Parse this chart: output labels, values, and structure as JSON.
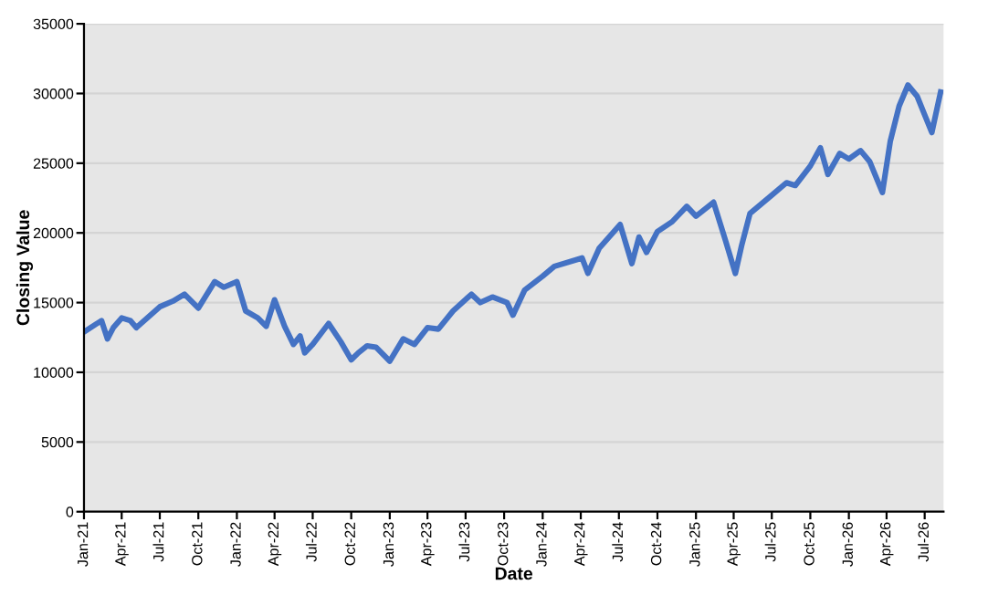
{
  "chart_data": {
    "type": "line",
    "xlabel": "Date",
    "ylabel": "Closing Value",
    "x": [
      "2021-01-01",
      "2021-02-01",
      "2021-02-12",
      "2021-02-26",
      "2021-03-12",
      "2021-04-01",
      "2021-04-22",
      "2021-05-06",
      "2021-07-01",
      "2021-08-01",
      "2021-08-29",
      "2021-10-01",
      "2021-11-09",
      "2021-12-01",
      "2022-01-01",
      "2022-01-22",
      "2022-02-20",
      "2022-03-12",
      "2022-04-01",
      "2022-04-25",
      "2022-05-16",
      "2022-06-01",
      "2022-06-12",
      "2022-07-01",
      "2022-08-08",
      "2022-09-06",
      "2022-10-01",
      "2022-10-18",
      "2022-11-08",
      "2022-11-29",
      "2023-01-01",
      "2023-02-02",
      "2023-03-01",
      "2023-04-01",
      "2023-04-27",
      "2023-06-01",
      "2023-07-15",
      "2023-08-05",
      "2023-09-03",
      "2023-10-08",
      "2023-10-22",
      "2023-11-19",
      "2024-01-01",
      "2024-01-29",
      "2024-04-04",
      "2024-04-18",
      "2024-05-15",
      "2024-07-04",
      "2024-08-01",
      "2024-08-18",
      "2024-09-05",
      "2024-10-01",
      "2024-11-05",
      "2024-12-10",
      "2025-01-01",
      "2025-02-12",
      "2025-03-12",
      "2025-04-05",
      "2025-04-20",
      "2025-05-10",
      "2025-07-01",
      "2025-08-05",
      "2025-08-26",
      "2025-10-01",
      "2025-10-25",
      "2025-11-12",
      "2025-12-10",
      "2026-01-01",
      "2026-01-29",
      "2026-02-20",
      "2026-03-22",
      "2026-04-10",
      "2026-05-01",
      "2026-05-22",
      "2026-06-13",
      "2026-07-18",
      "2026-08-08"
    ],
    "series": [
      {
        "color": "#4472c4",
        "values": [
          12900,
          13500,
          13700,
          12400,
          13200,
          13900,
          13700,
          13200,
          14700,
          15100,
          15600,
          14600,
          16500,
          16100,
          16500,
          14400,
          13900,
          13300,
          15200,
          13300,
          12000,
          12600,
          11400,
          12000,
          13500,
          12200,
          10900,
          11400,
          11900,
          11800,
          10800,
          12400,
          12000,
          13200,
          13100,
          14400,
          15600,
          15000,
          15400,
          15000,
          14100,
          15900,
          16900,
          17600,
          18200,
          17100,
          18900,
          20600,
          17800,
          19700,
          18600,
          20100,
          20800,
          21900,
          21200,
          22200,
          19500,
          17100,
          19100,
          21400,
          22700,
          23600,
          23400,
          24800,
          26100,
          24200,
          25700,
          25300,
          25900,
          25100,
          22900,
          26600,
          29100,
          30600,
          29800,
          27200,
          30100
        ]
      }
    ],
    "xlim": [
      "2021-01-01",
      "2026-08-15"
    ],
    "xticks": [
      {
        "value": "2021-01",
        "label": "Jan-21"
      },
      {
        "value": "2021-04",
        "label": "Apr-21"
      },
      {
        "value": "2021-07",
        "label": "Jul-21"
      },
      {
        "value": "2021-10",
        "label": "Oct-21"
      },
      {
        "value": "2022-01",
        "label": "Jan-22"
      },
      {
        "value": "2022-04",
        "label": "Apr-22"
      },
      {
        "value": "2022-07",
        "label": "Jul-22"
      },
      {
        "value": "2022-10",
        "label": "Oct-22"
      },
      {
        "value": "2023-01",
        "label": "Jan-23"
      },
      {
        "value": "2023-04",
        "label": "Apr-23"
      },
      {
        "value": "2023-07",
        "label": "Jul-23"
      },
      {
        "value": "2023-10",
        "label": "Oct-23"
      },
      {
        "value": "2024-01",
        "label": "Jan-24"
      },
      {
        "value": "2024-04",
        "label": "Apr-24"
      },
      {
        "value": "2024-07",
        "label": "Jul-24"
      },
      {
        "value": "2024-10",
        "label": "Oct-24"
      },
      {
        "value": "2025-01",
        "label": "Jan-25"
      },
      {
        "value": "2025-04",
        "label": "Apr-25"
      },
      {
        "value": "2025-07",
        "label": "Jul-25"
      },
      {
        "value": "2025-10",
        "label": "Oct-25"
      },
      {
        "value": "2026-01",
        "label": "Jan-26"
      },
      {
        "value": "2026-04",
        "label": "Apr-26"
      },
      {
        "value": "2026-07",
        "label": "Jul-26"
      }
    ],
    "ylim": [
      0,
      35000
    ],
    "yticks": [
      0,
      5000,
      10000,
      15000,
      20000,
      25000,
      30000,
      35000
    ],
    "grid": "y",
    "marker": "none",
    "line_style": "solid"
  }
}
